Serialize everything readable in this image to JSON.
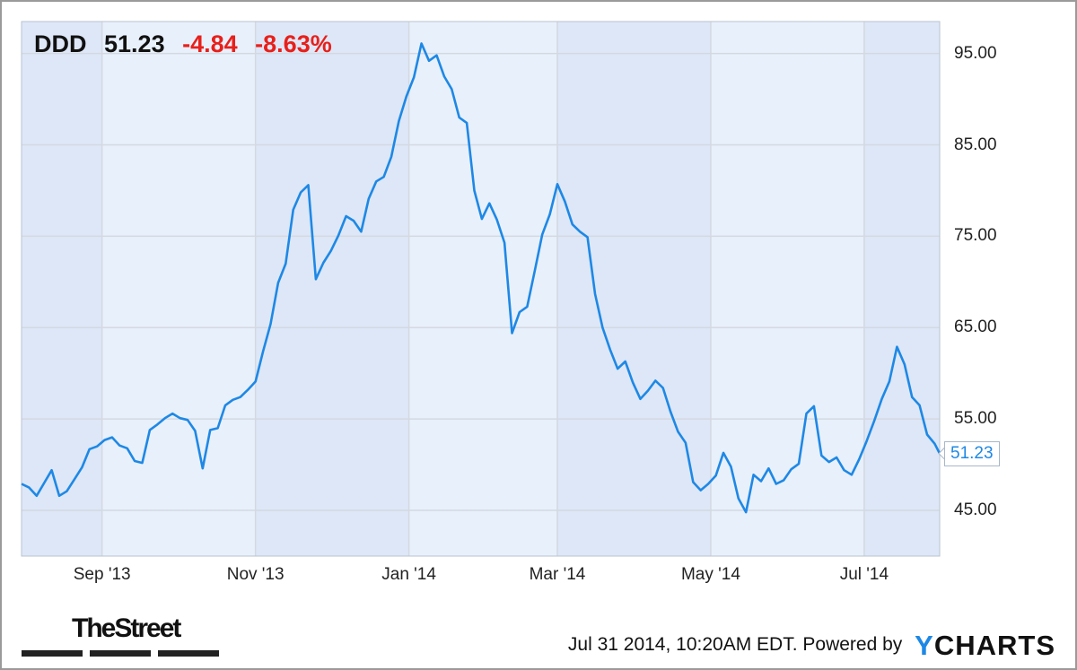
{
  "header": {
    "ticker": "DDD",
    "price": "51.23",
    "change": "-4.84",
    "change_pct": "-8.63%"
  },
  "chart_data": {
    "type": "line",
    "title": "",
    "series": [
      {
        "name": "DDD",
        "color": "#1e88e5",
        "x": [
          "2013-07-31",
          "2013-08-03",
          "2013-08-06",
          "2013-08-09",
          "2013-08-12",
          "2013-08-15",
          "2013-08-18",
          "2013-08-21",
          "2013-08-24",
          "2013-08-27",
          "2013-08-30",
          "2013-09-02",
          "2013-09-05",
          "2013-09-08",
          "2013-09-11",
          "2013-09-14",
          "2013-09-17",
          "2013-09-20",
          "2013-09-23",
          "2013-09-26",
          "2013-09-29",
          "2013-10-02",
          "2013-10-05",
          "2013-10-08",
          "2013-10-11",
          "2013-10-14",
          "2013-10-17",
          "2013-10-20",
          "2013-10-23",
          "2013-10-26",
          "2013-10-29",
          "2013-11-01",
          "2013-11-04",
          "2013-11-07",
          "2013-11-10",
          "2013-11-13",
          "2013-11-16",
          "2013-11-19",
          "2013-11-22",
          "2013-11-25",
          "2013-11-28",
          "2013-12-01",
          "2013-12-04",
          "2013-12-07",
          "2013-12-10",
          "2013-12-13",
          "2013-12-16",
          "2013-12-19",
          "2013-12-22",
          "2013-12-25",
          "2013-12-28",
          "2013-12-31",
          "2014-01-03",
          "2014-01-06",
          "2014-01-09",
          "2014-01-12",
          "2014-01-15",
          "2014-01-18",
          "2014-01-21",
          "2014-01-24",
          "2014-01-27",
          "2014-01-30",
          "2014-02-02",
          "2014-02-05",
          "2014-02-08",
          "2014-02-11",
          "2014-02-14",
          "2014-02-17",
          "2014-02-20",
          "2014-02-23",
          "2014-02-26",
          "2014-03-01",
          "2014-03-04",
          "2014-03-07",
          "2014-03-10",
          "2014-03-13",
          "2014-03-16",
          "2014-03-19",
          "2014-03-22",
          "2014-03-25",
          "2014-03-28",
          "2014-03-31",
          "2014-04-03",
          "2014-04-06",
          "2014-04-09",
          "2014-04-12",
          "2014-04-15",
          "2014-04-18",
          "2014-04-21",
          "2014-04-24",
          "2014-04-27",
          "2014-04-30",
          "2014-05-03",
          "2014-05-06",
          "2014-05-09",
          "2014-05-12",
          "2014-05-15",
          "2014-05-18",
          "2014-05-21",
          "2014-05-24",
          "2014-05-27",
          "2014-05-30",
          "2014-06-02",
          "2014-06-05",
          "2014-06-08",
          "2014-06-11",
          "2014-06-14",
          "2014-06-17",
          "2014-06-20",
          "2014-06-23",
          "2014-06-26",
          "2014-06-29",
          "2014-07-02",
          "2014-07-05",
          "2014-07-08",
          "2014-07-11",
          "2014-07-14",
          "2014-07-17",
          "2014-07-20",
          "2014-07-23",
          "2014-07-26",
          "2014-07-29",
          "2014-07-31"
        ],
        "values": [
          47.9,
          47.5,
          46.6,
          48.0,
          49.4,
          46.6,
          47.1,
          48.4,
          49.7,
          51.7,
          52.0,
          52.7,
          53.0,
          52.1,
          51.8,
          50.4,
          50.2,
          53.8,
          54.4,
          55.1,
          55.6,
          55.1,
          54.9,
          53.7,
          49.6,
          53.8,
          54.0,
          56.5,
          57.1,
          57.4,
          58.2,
          59.1,
          62.4,
          65.4,
          69.9,
          72.0,
          77.9,
          79.8,
          80.6,
          70.3,
          72.1,
          73.4,
          75.1,
          77.2,
          76.7,
          75.5,
          79.1,
          81.0,
          81.5,
          83.7,
          87.6,
          90.3,
          92.4,
          96.1,
          94.2,
          94.8,
          92.5,
          91.1,
          88.0,
          87.4,
          80.0,
          76.9,
          78.6,
          76.8,
          74.3,
          64.4,
          66.7,
          67.3,
          71.2,
          75.2,
          77.4,
          80.7,
          78.8,
          76.3,
          75.5,
          74.9,
          68.7,
          65.0,
          62.6,
          60.5,
          61.3,
          59.0,
          57.2,
          58.1,
          59.2,
          58.4,
          55.8,
          53.6,
          52.4,
          48.1,
          47.2,
          47.9,
          48.8,
          51.3,
          49.8,
          46.3,
          44.8,
          48.9,
          48.2,
          49.6,
          47.9,
          48.3,
          49.5,
          50.1,
          55.6,
          56.4,
          51.0,
          50.3,
          50.8,
          49.4,
          48.9,
          50.6,
          52.6,
          54.8,
          57.2,
          59.1,
          62.9,
          61.0,
          57.4,
          56.5,
          53.3,
          52.3,
          51.23
        ]
      }
    ],
    "y_ticks": [
      "95.00",
      "85.00",
      "75.00",
      "65.00",
      "55.00",
      "45.00"
    ],
    "x_ticks": [
      {
        "label": "Sep '13",
        "date": "2013-09-01"
      },
      {
        "label": "Nov '13",
        "date": "2013-11-01"
      },
      {
        "label": "Jan '14",
        "date": "2014-01-01"
      },
      {
        "label": "Mar '14",
        "date": "2014-03-01"
      },
      {
        "label": "May '14",
        "date": "2014-05-01"
      },
      {
        "label": "Jul '14",
        "date": "2014-07-01"
      }
    ],
    "ylim": [
      40.0,
      98.5
    ],
    "xlim": [
      "2013-07-31",
      "2014-07-31"
    ],
    "last_value_label": "51.23",
    "grid": true,
    "colors": {
      "plot_bg": "#e8f0fb",
      "shaded_band": "#dde7f7",
      "grid": "#d4d9e1",
      "line": "#1e88e5"
    }
  },
  "branding": {
    "thestreet": "TheStreet",
    "timestamp": "Jul 31 2014, 10:20AM EDT.",
    "powered_by": "Powered by",
    "ycharts_y": "Y",
    "ycharts_rest": "CHARTS"
  }
}
